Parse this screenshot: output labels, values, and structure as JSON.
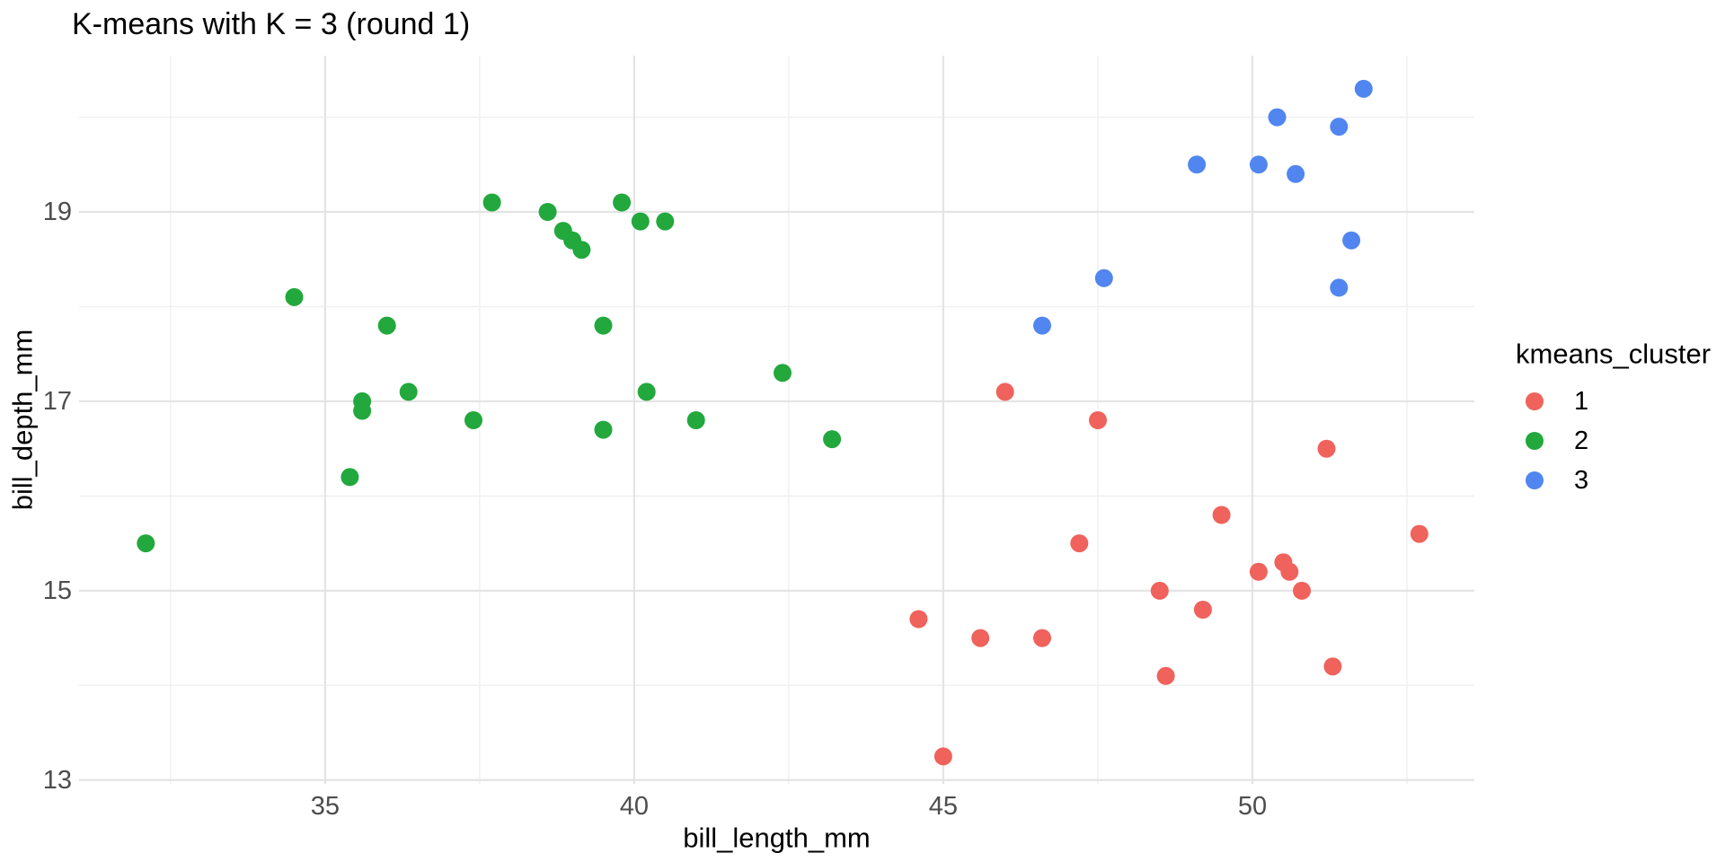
{
  "figure": {
    "title": "K-means with K = 3 (round 1)"
  },
  "chart_data": {
    "type": "scatter",
    "title": "K-means with K = 3 (round 1)",
    "xlabel": "bill_length_mm",
    "ylabel": "bill_depth_mm",
    "xlim": [
      31.02,
      53.59
    ],
    "ylim": [
      12.96,
      20.65
    ],
    "x_ticks": [
      35,
      40,
      45,
      50
    ],
    "y_ticks": [
      13,
      15,
      17,
      19
    ],
    "x_minor_ticks": [
      32.5,
      37.5,
      42.5,
      47.5,
      52.5
    ],
    "y_minor_ticks": [
      14,
      16,
      18,
      20
    ],
    "grid": "on",
    "legend_title": "kmeans_cluster",
    "legend_position": "right",
    "point_radius": 10,
    "series": [
      {
        "name": "1",
        "color": "#F0625C",
        "points": [
          [
            46.0,
            17.1
          ],
          [
            47.5,
            16.8
          ],
          [
            51.2,
            16.5
          ],
          [
            49.5,
            15.8
          ],
          [
            52.7,
            15.6
          ],
          [
            47.2,
            15.5
          ],
          [
            50.5,
            15.3
          ],
          [
            50.1,
            15.2
          ],
          [
            50.6,
            15.2
          ],
          [
            48.5,
            15.0
          ],
          [
            50.8,
            15.0
          ],
          [
            49.2,
            14.8
          ],
          [
            44.6,
            14.7
          ],
          [
            45.6,
            14.5
          ],
          [
            46.6,
            14.5
          ],
          [
            51.3,
            14.2
          ],
          [
            48.6,
            14.1
          ],
          [
            45.0,
            13.25
          ]
        ]
      },
      {
        "name": "2",
        "color": "#22A83C",
        "points": [
          [
            32.1,
            15.5
          ],
          [
            34.5,
            18.1
          ],
          [
            35.4,
            16.2
          ],
          [
            35.6,
            17.0
          ],
          [
            35.6,
            16.9
          ],
          [
            36.0,
            17.8
          ],
          [
            36.35,
            17.1
          ],
          [
            37.4,
            16.8
          ],
          [
            37.7,
            19.1
          ],
          [
            38.6,
            19.0
          ],
          [
            38.85,
            18.8
          ],
          [
            39.0,
            18.7
          ],
          [
            39.15,
            18.6
          ],
          [
            39.5,
            17.8
          ],
          [
            39.5,
            16.7
          ],
          [
            39.8,
            19.1
          ],
          [
            40.1,
            18.9
          ],
          [
            40.5,
            18.9
          ],
          [
            40.2,
            17.1
          ],
          [
            41.0,
            16.8
          ],
          [
            42.4,
            17.3
          ],
          [
            43.2,
            16.6
          ]
        ]
      },
      {
        "name": "3",
        "color": "#5186F0",
        "points": [
          [
            46.6,
            17.8
          ],
          [
            47.6,
            18.3
          ],
          [
            49.1,
            19.5
          ],
          [
            50.1,
            19.5
          ],
          [
            50.4,
            20.0
          ],
          [
            50.7,
            19.4
          ],
          [
            51.4,
            19.9
          ],
          [
            51.4,
            18.2
          ],
          [
            51.6,
            18.7
          ],
          [
            51.8,
            20.3
          ]
        ]
      }
    ],
    "style": {
      "major_grid_color": "#E4E4E4",
      "minor_grid_color": "#F1F1F1",
      "tick_label_color": "#4D4D4D",
      "title_color": "#000000",
      "axis_title_color": "#000000",
      "legend_text_color": "#000000",
      "background": "#FFFFFF"
    }
  }
}
